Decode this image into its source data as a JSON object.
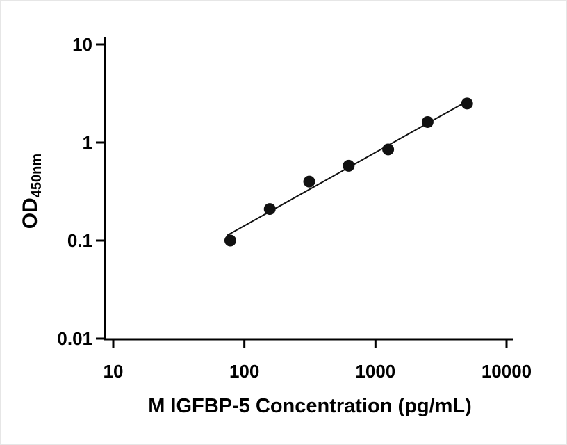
{
  "figure": {
    "background": "#ffffff"
  },
  "chart_data": {
    "type": "scatter",
    "xlabel": "M IGFBP-5 Concentration (pg/mL)",
    "ylabel": "OD450nm",
    "ylabel_parts": {
      "main": "OD",
      "sub": "450nm"
    },
    "x_scale": "log10",
    "y_scale": "log10",
    "xlim": [
      10,
      10000
    ],
    "ylim": [
      0.01,
      10
    ],
    "x_ticks": [
      10,
      100,
      1000,
      10000
    ],
    "x_tick_labels": [
      "10",
      "100",
      "1000",
      "10000"
    ],
    "y_ticks": [
      0.01,
      0.1,
      1,
      10
    ],
    "y_tick_labels": [
      "0.01",
      "0.1",
      "1",
      "10"
    ],
    "grid": false,
    "legend": false,
    "axis_color": "#000000",
    "series": [
      {
        "points": [
          {
            "x": 78.125,
            "y": 0.1
          },
          {
            "x": 156.25,
            "y": 0.21
          },
          {
            "x": 312.5,
            "y": 0.4
          },
          {
            "x": 625,
            "y": 0.58
          },
          {
            "x": 1250,
            "y": 0.85
          },
          {
            "x": 2500,
            "y": 1.62
          },
          {
            "x": 5000,
            "y": 2.5
          }
        ],
        "marker": {
          "shape": "circle",
          "color": "#111111",
          "radius_px": 8.5
        }
      }
    ],
    "trend_line": {
      "x1": 74,
      "y1": 0.113,
      "x2": 5050,
      "y2": 2.66,
      "color": "#111111"
    }
  }
}
